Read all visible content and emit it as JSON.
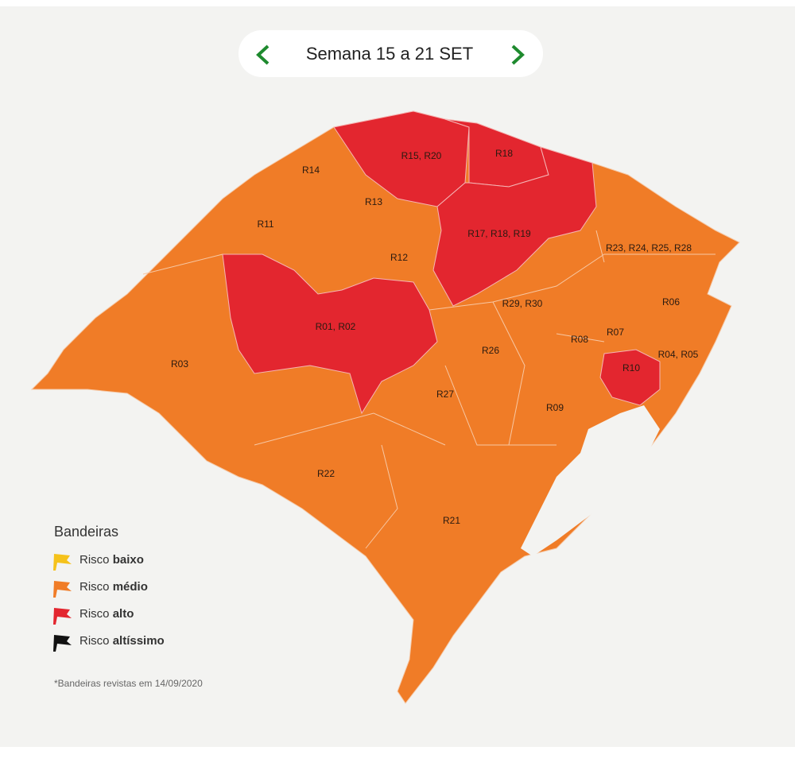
{
  "header": {
    "title": "Semana 15 a 21 SET"
  },
  "regions": [
    {
      "label": "R15, R20",
      "color": "#e3262f"
    },
    {
      "label": "R18",
      "color": "#e3262f"
    },
    {
      "label": "R17, R18, R19",
      "color": "#e3262f"
    },
    {
      "label": "R01, R02",
      "color": "#e3262f"
    },
    {
      "label": "R10",
      "color": "#e3262f"
    },
    {
      "label": "R14"
    },
    {
      "label": "R13"
    },
    {
      "label": "R11"
    },
    {
      "label": "R12"
    },
    {
      "label": "R23, R24, R25, R28"
    },
    {
      "label": "R29, R30"
    },
    {
      "label": "R06"
    },
    {
      "label": "R03"
    },
    {
      "label": "R08"
    },
    {
      "label": "R07"
    },
    {
      "label": "R04, R05"
    },
    {
      "label": "R26"
    },
    {
      "label": "R27"
    },
    {
      "label": "R09"
    },
    {
      "label": "R22"
    },
    {
      "label": "R21"
    }
  ],
  "legend": {
    "title": "Bandeiras",
    "items": [
      {
        "prefix": "Risco",
        "level": "baixo",
        "color": "#f5c21b"
      },
      {
        "prefix": "Risco",
        "level": "médio",
        "color": "#f07c27"
      },
      {
        "prefix": "Risco",
        "level": "alto",
        "color": "#e3262f"
      },
      {
        "prefix": "Risco",
        "level": "altíssimo",
        "color": "#111111"
      }
    ]
  },
  "footnote": "*Bandeiras revistas em 14/09/2020"
}
